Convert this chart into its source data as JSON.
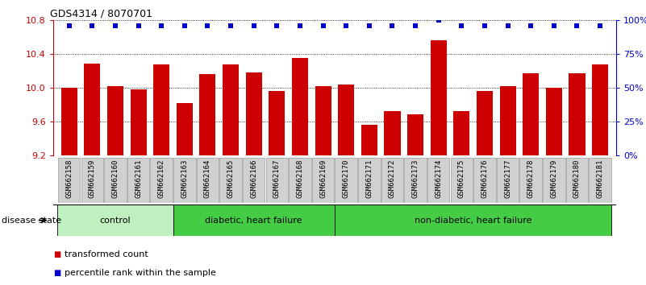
{
  "title": "GDS4314 / 8070701",
  "samples": [
    "GSM662158",
    "GSM662159",
    "GSM662160",
    "GSM662161",
    "GSM662162",
    "GSM662163",
    "GSM662164",
    "GSM662165",
    "GSM662166",
    "GSM662167",
    "GSM662168",
    "GSM662169",
    "GSM662170",
    "GSM662171",
    "GSM662172",
    "GSM662173",
    "GSM662174",
    "GSM662175",
    "GSM662176",
    "GSM662177",
    "GSM662178",
    "GSM662179",
    "GSM662180",
    "GSM662181"
  ],
  "bar_values": [
    10.0,
    10.28,
    10.02,
    9.98,
    10.27,
    9.82,
    10.16,
    10.27,
    10.18,
    9.96,
    10.35,
    10.02,
    10.04,
    9.56,
    9.72,
    9.68,
    10.56,
    9.72,
    9.96,
    10.02,
    10.17,
    10.0,
    10.17,
    10.27
  ],
  "percentile_values": [
    96,
    96,
    96,
    96,
    96,
    96,
    96,
    96,
    96,
    96,
    96,
    96,
    96,
    96,
    96,
    96,
    100,
    96,
    96,
    96,
    96,
    96,
    96,
    96
  ],
  "ylim": [
    9.2,
    10.8
  ],
  "yticks_left": [
    9.2,
    9.6,
    10.0,
    10.4,
    10.8
  ],
  "yticks_right": [
    0,
    25,
    50,
    75,
    100
  ],
  "bar_color": "#cc0000",
  "percentile_color": "#0000cc",
  "left_axis_color": "#cc0000",
  "right_axis_color": "#0000cc",
  "groups": [
    {
      "label": "control",
      "start": 0,
      "end": 4,
      "color": "#c0f0c0"
    },
    {
      "label": "diabetic, heart failure",
      "start": 5,
      "end": 11,
      "color": "#44cc44"
    },
    {
      "label": "non-diabetic, heart failure",
      "start": 12,
      "end": 23,
      "color": "#44cc44"
    }
  ],
  "xtick_bg_color": "#d0d0d0",
  "xtick_border_color": "#888888",
  "disease_state_label": "disease state",
  "legend_items": [
    {
      "label": "transformed count",
      "color": "#cc0000"
    },
    {
      "label": "percentile rank within the sample",
      "color": "#0000cc"
    }
  ],
  "fig_width": 8.01,
  "fig_height": 3.54,
  "dpi": 100
}
